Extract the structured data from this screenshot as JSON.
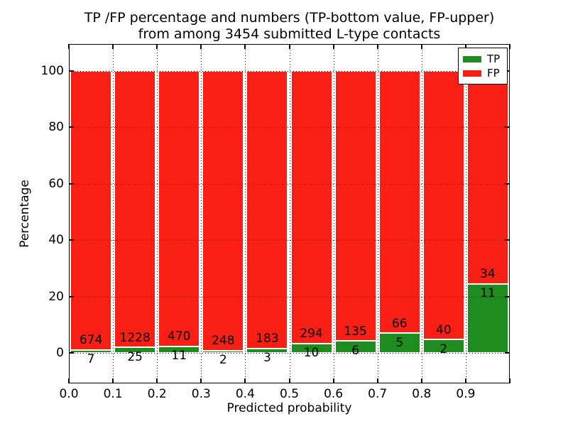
{
  "title": {
    "line1": "TP /FP percentage and numbers (TP-bottom value, FP-upper)",
    "line2": "from among 3454 submitted L-type contacts"
  },
  "axes": {
    "xlabel": "Predicted probability",
    "ylabel": "Percentage",
    "x_tick_labels": [
      "0.0",
      "0.1",
      "0.2",
      "0.3",
      "0.4",
      "0.5",
      "0.6",
      "0.7",
      "0.8",
      "0.9"
    ],
    "y_tick_labels": [
      "0",
      "20",
      "40",
      "60",
      "80",
      "100"
    ]
  },
  "legend": {
    "position": "upper right",
    "entries": [
      {
        "label": "TP",
        "color": "#1f8c1f"
      },
      {
        "label": "FP",
        "color": "#fa1f14"
      }
    ]
  },
  "chart_data": {
    "type": "bar",
    "stacked": true,
    "normalized": "percent",
    "title": "TP /FP percentage and numbers (TP-bottom value, FP-upper) from among 3454 submitted L-type contacts",
    "xlabel": "Predicted probability",
    "ylabel": "Percentage",
    "total_submitted": 3454,
    "bin_edges": [
      0.0,
      0.1,
      0.2,
      0.3,
      0.4,
      0.5,
      0.6,
      0.7,
      0.8,
      0.9,
      1.0
    ],
    "categories": [
      "0.0-0.1",
      "0.1-0.2",
      "0.2-0.3",
      "0.3-0.4",
      "0.4-0.5",
      "0.5-0.6",
      "0.6-0.7",
      "0.7-0.8",
      "0.8-0.9",
      "0.9-1.0"
    ],
    "series": [
      {
        "name": "TP",
        "color": "#1f8c1f",
        "counts": [
          7,
          25,
          11,
          2,
          3,
          10,
          6,
          5,
          2,
          11
        ]
      },
      {
        "name": "FP",
        "color": "#fa1f14",
        "counts": [
          674,
          1228,
          470,
          248,
          183,
          294,
          135,
          66,
          40,
          34
        ]
      }
    ],
    "tp_percent": [
      1.0,
      2.0,
      2.3,
      0.8,
      1.6,
      3.3,
      4.3,
      7.0,
      4.8,
      24.4
    ],
    "xlim": [
      0.0,
      1.0
    ],
    "ylim": [
      -10.8,
      109.6
    ],
    "grid": "dotted",
    "legend_position": "upper right"
  }
}
